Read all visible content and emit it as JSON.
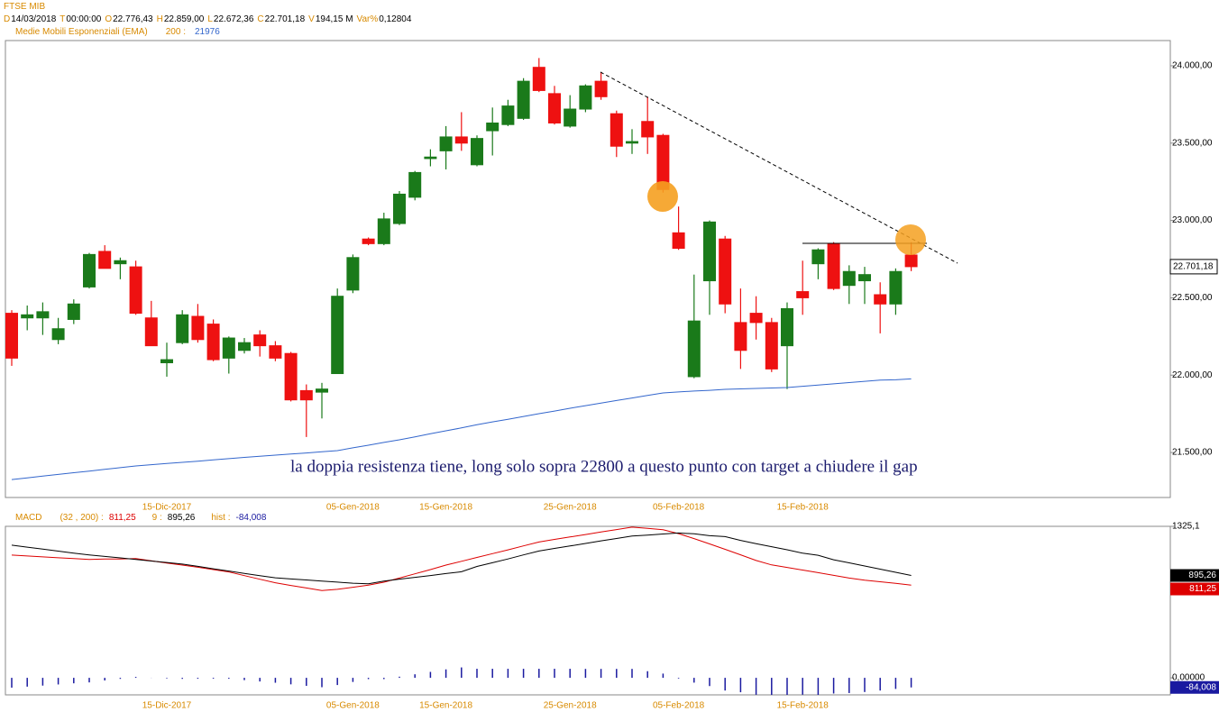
{
  "header": {
    "symbol": "FTSE MIB",
    "fields": [
      {
        "k": "D",
        "v": "14/03/2018"
      },
      {
        "k": "T",
        "v": "00:00:00"
      },
      {
        "k": "O",
        "v": "22.776,43"
      },
      {
        "k": "H",
        "v": "22.859,00"
      },
      {
        "k": "L",
        "v": "22.672,36"
      },
      {
        "k": "C",
        "v": "22.701,18"
      },
      {
        "k": "V",
        "v": "194,15 M"
      },
      {
        "k": "Var%",
        "v": "0,12804"
      }
    ]
  },
  "chart_data": [
    {
      "type": "candlestick",
      "categories": [
        null,
        null,
        null,
        null,
        null,
        null,
        null,
        null,
        null,
        null,
        "15-Dic-2017",
        null,
        null,
        null,
        null,
        null,
        null,
        null,
        null,
        null,
        null,
        null,
        "05-Gen-2018",
        null,
        null,
        null,
        null,
        null,
        "15-Gen-2018",
        null,
        null,
        null,
        null,
        null,
        null,
        null,
        "25-Gen-2018",
        null,
        null,
        null,
        null,
        null,
        null,
        "05-Feb-2018",
        null,
        null,
        null,
        null,
        null,
        null,
        null,
        "15-Feb-2018",
        null,
        null,
        null,
        null,
        null,
        null,
        null
      ],
      "open": [
        22400,
        22370,
        22370,
        22230,
        22360,
        22570,
        22800,
        22720,
        22700,
        22370,
        22080,
        22210,
        22380,
        22330,
        22110,
        22160,
        22260,
        22190,
        22140,
        21900,
        21890,
        22010,
        22550,
        22880,
        22850,
        22980,
        23150,
        23400,
        23450,
        23540,
        23360,
        23580,
        23620,
        23660,
        23990,
        23820,
        23610,
        23720,
        23900,
        23690,
        23500,
        23640,
        23550,
        22920,
        21990,
        22610,
        22880,
        22340,
        22400,
        22340,
        22190,
        22540,
        22720,
        22850,
        22580,
        22610,
        22520,
        22460,
        22776.43
      ],
      "high": [
        22420,
        22450,
        22470,
        22370,
        22490,
        22790,
        22840,
        22760,
        22740,
        22480,
        22210,
        22420,
        22460,
        22360,
        22250,
        22240,
        22290,
        22220,
        22150,
        21940,
        21950,
        22560,
        22780,
        22890,
        23050,
        23190,
        23320,
        23460,
        23610,
        23700,
        23550,
        23730,
        23780,
        23920,
        24050,
        23870,
        23810,
        23880,
        23960,
        23710,
        23590,
        23800,
        23560,
        23090,
        22650,
        23000,
        22900,
        22560,
        22510,
        22370,
        22470,
        22740,
        22820,
        22860,
        22710,
        22700,
        22600,
        22690,
        22859
      ],
      "low": [
        22060,
        22290,
        22260,
        22200,
        22330,
        22560,
        22690,
        22620,
        22390,
        22190,
        21990,
        22200,
        22210,
        22090,
        22010,
        22140,
        22120,
        22090,
        21830,
        21600,
        21720,
        22010,
        22530,
        22840,
        22840,
        22970,
        23130,
        23350,
        23330,
        23450,
        23350,
        23420,
        23610,
        23650,
        23830,
        23620,
        23600,
        23700,
        23780,
        23410,
        23430,
        23430,
        23180,
        22810,
        21980,
        22390,
        22400,
        22040,
        22230,
        22020,
        21910,
        22390,
        22620,
        22550,
        22460,
        22460,
        22270,
        22390,
        22672.36
      ],
      "close": [
        22110,
        22390,
        22410,
        22300,
        22460,
        22780,
        22690,
        22740,
        22400,
        22190,
        22100,
        22390,
        22230,
        22100,
        22240,
        22210,
        22190,
        22110,
        21840,
        21840,
        21910,
        22510,
        22760,
        22850,
        23010,
        23170,
        23310,
        23410,
        23540,
        23500,
        23530,
        23630,
        23740,
        23900,
        23840,
        23630,
        23720,
        23870,
        23800,
        23480,
        23510,
        23540,
        23200,
        22820,
        22350,
        22990,
        22460,
        22160,
        22340,
        22040,
        22430,
        22500,
        22810,
        22560,
        22670,
        22650,
        22460,
        22670,
        22701.18
      ],
      "up_color": "#1a7a1a",
      "down_color": "#ee1111",
      "series": [
        {
          "name": "Medie Mobili Esponenziali (EMA)",
          "period": "200 :",
          "color": "#3366cc",
          "values": [
            21325,
            21336,
            21347,
            21358,
            21369,
            21380,
            21391,
            21402,
            21413,
            21421,
            21429,
            21436,
            21444,
            21452,
            21460,
            21468,
            21475,
            21483,
            21490,
            21497,
            21505,
            21512,
            21530,
            21547,
            21565,
            21582,
            21601,
            21621,
            21640,
            21659,
            21679,
            21698,
            21715,
            21733,
            21751,
            21768,
            21786,
            21803,
            21819,
            21836,
            21852,
            21869,
            21885,
            21891,
            21897,
            21902,
            21908,
            21911,
            21914,
            21917,
            21920,
            21928,
            21936,
            21944,
            21952,
            21960,
            21968,
            21970,
            21976
          ],
          "last": {
            "value": 21976,
            "label": "21976"
          }
        }
      ],
      "last_price": {
        "value": 22701.18,
        "label": "22.701,18"
      },
      "ylim": [
        21209,
        24163
      ],
      "yticks": [
        {
          "value": 24000,
          "label": "24.000,00"
        },
        {
          "value": 23500,
          "label": "23.500,00"
        },
        {
          "value": 23000,
          "label": "23.000,00"
        },
        {
          "value": 22500,
          "label": "22.500,00"
        },
        {
          "value": 22000,
          "label": "22.000,00"
        },
        {
          "value": 21500,
          "label": "21.500,00"
        }
      ],
      "annotation": "la doppia resistenza tiene, long solo sopra 22800 a questo punto con target a chiudere il gap"
    },
    {
      "type": "macd",
      "title": "MACD",
      "series": [
        {
          "name": "(32 , 200) :",
          "color": "#dd0000",
          "values": [
            1074,
            1066,
            1058,
            1050,
            1043,
            1035,
            1039,
            1040,
            1043,
            1023,
            1004,
            986,
            967,
            947,
            926,
            894,
            862,
            832,
            808,
            786,
            764,
            774,
            792,
            811,
            836,
            873,
            910,
            947,
            986,
            1019,
            1053,
            1086,
            1119,
            1154,
            1188,
            1211,
            1232,
            1253,
            1276,
            1297,
            1318,
            1307,
            1295,
            1261,
            1218,
            1171,
            1124,
            1076,
            1026,
            988,
            966,
            943,
            920,
            896,
            873,
            854,
            840,
            826,
            811.25
          ],
          "last": {
            "value": 811.25,
            "label": "811,25"
          }
        },
        {
          "name": "9 :",
          "color": "#000000",
          "values": [
            1160,
            1143,
            1126,
            1108,
            1091,
            1075,
            1062,
            1049,
            1035,
            1022,
            1009,
            995,
            975,
            954,
            934,
            914,
            894,
            875,
            865,
            856,
            846,
            837,
            828,
            822,
            847,
            863,
            879,
            895,
            912,
            928,
            974,
            1007,
            1040,
            1075,
            1109,
            1132,
            1153,
            1175,
            1198,
            1219,
            1240,
            1249,
            1258,
            1267,
            1260,
            1243,
            1235,
            1202,
            1174,
            1147,
            1120,
            1090,
            1072,
            1033,
            1006,
            978,
            951,
            923,
            895.26
          ],
          "last": {
            "value": 895.26,
            "label": "895,26"
          }
        },
        {
          "name": "hist :",
          "color": "#1a1aa0",
          "kind": "histogram",
          "values": [
            -86,
            -77,
            -68,
            -58,
            -48,
            -40,
            -23,
            -9,
            8,
            1,
            -5,
            -9,
            -8,
            -7,
            -8,
            -20,
            -32,
            -43,
            -57,
            -70,
            -82,
            -63,
            -36,
            -11,
            -11,
            10,
            31,
            52,
            74,
            91,
            79,
            79,
            79,
            79,
            79,
            79,
            79,
            78,
            78,
            78,
            78,
            58,
            37,
            -6,
            -42,
            -72,
            -111,
            -126,
            -148,
            -159,
            -154,
            -147,
            -152,
            -137,
            -133,
            -124,
            -111,
            -97,
            -84.008
          ],
          "last": {
            "value": -84.008,
            "label": "-84,008"
          }
        }
      ],
      "ylim": [
        -149,
        1325.1
      ],
      "yticks": [
        {
          "value": 1325.1,
          "label": "1325,1"
        },
        {
          "value": 0,
          "label": "0,00000"
        }
      ]
    }
  ]
}
